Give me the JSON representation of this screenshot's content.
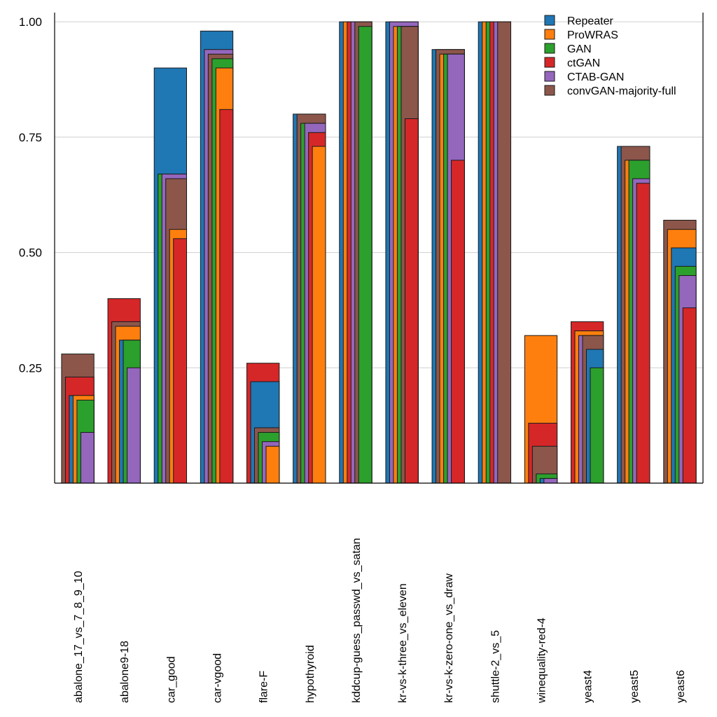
{
  "chart_data": {
    "type": "bar",
    "layout": "overlapping-layered",
    "title": "",
    "xlabel": "",
    "ylabel": "",
    "ylim": [
      0,
      1.02
    ],
    "yticks": [
      0.25,
      0.5,
      0.75,
      1.0
    ],
    "ytick_labels": [
      "0.25",
      "0.50",
      "0.75",
      "1.00"
    ],
    "grid": true,
    "legend_position": "top-right",
    "categories": [
      "abalone_17_vs_7_8_9_10",
      "abalone9-18",
      "car_good",
      "car-vgood",
      "flare-F",
      "hypothyroid",
      "kddcup-guess_passwd_vs_satan",
      "kr-vs-k-three_vs_eleven",
      "kr-vs-k-zero-one_vs_draw",
      "shuttle-2_vs_5",
      "winequality-red-4",
      "yeast4",
      "yeast5",
      "yeast6"
    ],
    "series": [
      {
        "name": "Repeater",
        "color": "#1f77b4",
        "values": [
          0.19,
          0.31,
          0.9,
          0.98,
          0.22,
          0.8,
          1.0,
          1.0,
          0.94,
          1.0,
          0.01,
          0.29,
          0.73,
          0.51
        ]
      },
      {
        "name": "ProWRAS",
        "color": "#ff7f0e",
        "values": [
          0.19,
          0.34,
          0.55,
          0.9,
          0.08,
          0.73,
          1.0,
          0.99,
          0.93,
          1.0,
          0.32,
          0.33,
          0.7,
          0.55
        ]
      },
      {
        "name": "GAN",
        "color": "#2ca02c",
        "values": [
          0.18,
          0.31,
          0.67,
          0.92,
          0.11,
          0.78,
          0.99,
          0.99,
          0.93,
          1.0,
          0.02,
          0.25,
          0.7,
          0.47
        ]
      },
      {
        "name": "ctGAN",
        "color": "#d62728",
        "values": [
          0.23,
          0.4,
          0.53,
          0.81,
          0.26,
          0.76,
          1.0,
          0.79,
          0.7,
          1.0,
          0.13,
          0.35,
          0.65,
          0.38
        ]
      },
      {
        "name": "CTAB-GAN",
        "color": "#9467bd",
        "values": [
          0.11,
          0.25,
          0.67,
          0.94,
          0.09,
          0.78,
          1.0,
          1.0,
          0.93,
          1.0,
          0.01,
          0.32,
          0.66,
          0.45
        ]
      },
      {
        "name": "convGAN-majority-full",
        "color": "#8c564b",
        "values": [
          0.28,
          0.35,
          0.66,
          0.93,
          0.12,
          0.8,
          1.0,
          0.99,
          0.94,
          1.0,
          0.08,
          0.32,
          0.73,
          0.57
        ]
      }
    ]
  }
}
